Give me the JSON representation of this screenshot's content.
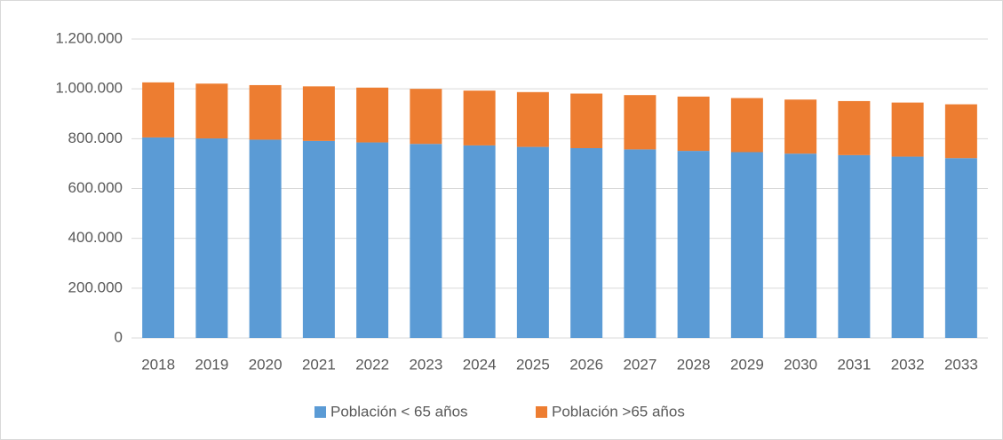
{
  "chart_data": {
    "type": "stacked_bar",
    "categories": [
      "2018",
      "2019",
      "2020",
      "2021",
      "2022",
      "2023",
      "2024",
      "2025",
      "2026",
      "2027",
      "2028",
      "2029",
      "2030",
      "2031",
      "2032",
      "2033"
    ],
    "series": [
      {
        "name": "Población < 65 años",
        "color": "#5b9bd5",
        "values": [
          805000,
          801000,
          796000,
          791000,
          785000,
          779000,
          773000,
          767000,
          762000,
          757000,
          751000,
          746000,
          740000,
          734000,
          728000,
          722000
        ]
      },
      {
        "name": "Población >65 años",
        "color": "#ed7d31",
        "values": [
          221000,
          220000,
          219000,
          219000,
          220000,
          221000,
          220000,
          220000,
          219000,
          218000,
          218000,
          217000,
          217000,
          217000,
          217000,
          216000
        ]
      }
    ],
    "ylim": [
      0,
      1200000
    ],
    "yticks": [
      0,
      {
        "value": 200000,
        "label": "200.000"
      },
      {
        "value": 400000,
        "label": "400.000"
      },
      {
        "value": 600000,
        "label": "600.000"
      },
      {
        "value": 800000,
        "label": "800.000"
      },
      {
        "value": 1000000,
        "label": "1.000.000"
      },
      {
        "value": 1200000,
        "label": "1.200.000"
      }
    ],
    "grid": true,
    "legend": "bottom"
  }
}
